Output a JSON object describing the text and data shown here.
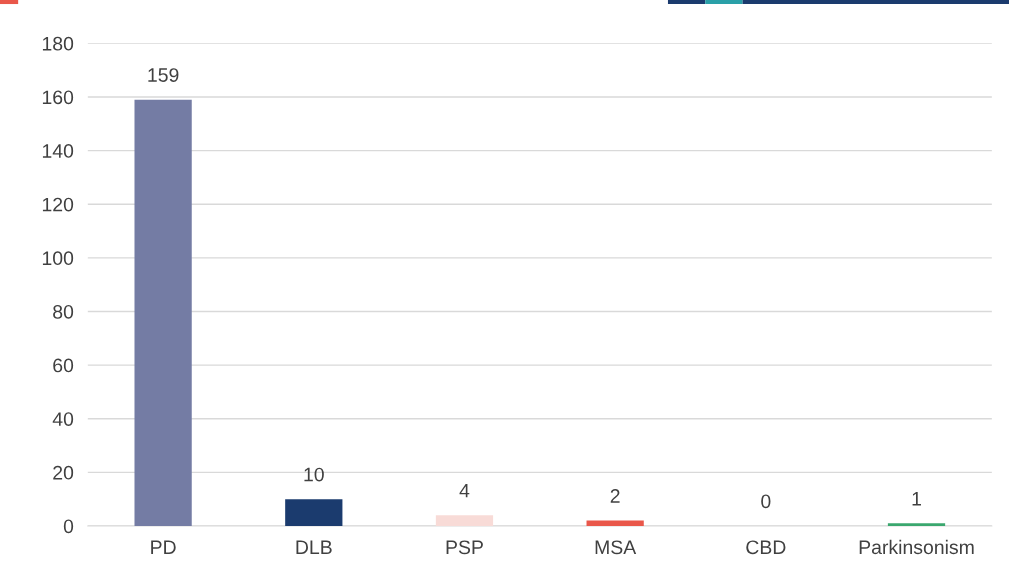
{
  "chart_data": {
    "type": "bar",
    "categories": [
      "PD",
      "DLB",
      "PSP",
      "MSA",
      "CBD",
      "Parkinsonism"
    ],
    "values": [
      159,
      10,
      4,
      2,
      0,
      1
    ],
    "colors": [
      "#747ca4",
      "#1b3b6e",
      "#f8dbd7",
      "#e9574a",
      "#4b5ea0",
      "#3aa76e"
    ],
    "ylim": [
      0,
      180
    ],
    "yticks": [
      0,
      20,
      40,
      60,
      80,
      100,
      120,
      140,
      160,
      180
    ],
    "grid": "y",
    "data_labels": true,
    "legend": false
  }
}
